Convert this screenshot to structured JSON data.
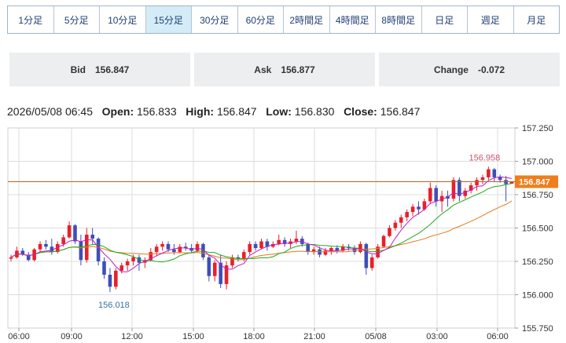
{
  "timeframe_tabs": [
    {
      "label": "1分足",
      "active": false
    },
    {
      "label": "5分足",
      "active": false
    },
    {
      "label": "10分足",
      "active": false
    },
    {
      "label": "15分足",
      "active": true
    },
    {
      "label": "30分足",
      "active": false
    },
    {
      "label": "60分足",
      "active": false
    },
    {
      "label": "2時間足",
      "active": false
    },
    {
      "label": "4時間足",
      "active": false
    },
    {
      "label": "8時間足",
      "active": false
    },
    {
      "label": "日足",
      "active": false
    },
    {
      "label": "週足",
      "active": false
    },
    {
      "label": "月足",
      "active": false
    }
  ],
  "quote": {
    "bid_label": "Bid",
    "bid": "156.847",
    "ask_label": "Ask",
    "ask": "156.877",
    "change_label": "Change",
    "change": "-0.072"
  },
  "ohlc": {
    "datetime": "2026/05/08 06:45",
    "open_label": "Open:",
    "open": "156.833",
    "high_label": "High:",
    "high": "156.847",
    "low_label": "Low:",
    "low": "156.830",
    "close_label": "Close:",
    "close": "156.847"
  },
  "colors": {
    "up": "#e8202a",
    "down": "#3d4fb8",
    "ma_short": "#c21cc2",
    "ma_mid": "#1fa81f",
    "ma_long": "#e77817",
    "price_line": "#c0631b",
    "price_tag": "#f07d1a",
    "grid": "#dddddd",
    "axis_text": "#333333",
    "high_label": "#d9506e",
    "low_label": "#3a6fa3"
  },
  "chart_data": {
    "type": "candlestick",
    "ylim": [
      155.75,
      157.25
    ],
    "y_ticks": [
      "157.250",
      "157.000",
      "156.750",
      "156.500",
      "156.250",
      "156.000",
      "155.750"
    ],
    "x_ticks": [
      "06:00",
      "09:00",
      "12:00",
      "15:00",
      "18:00",
      "21:00",
      "05/08",
      "03:00",
      "06:00"
    ],
    "current_price": "156.847",
    "high_annotation": "156.958",
    "low_annotation": "156.018",
    "grid": true,
    "candles": [
      [
        156.27,
        156.3,
        156.25,
        156.28
      ],
      [
        156.28,
        156.36,
        156.27,
        156.33
      ],
      [
        156.33,
        156.35,
        156.29,
        156.3
      ],
      [
        156.3,
        156.32,
        156.25,
        156.26
      ],
      [
        156.26,
        156.35,
        156.25,
        156.34
      ],
      [
        156.34,
        156.4,
        156.32,
        156.38
      ],
      [
        156.38,
        156.41,
        156.34,
        156.36
      ],
      [
        156.36,
        156.42,
        156.3,
        156.32
      ],
      [
        156.32,
        156.4,
        156.31,
        156.38
      ],
      [
        156.38,
        156.45,
        156.36,
        156.43
      ],
      [
        156.43,
        156.55,
        156.42,
        156.52
      ],
      [
        156.52,
        156.53,
        156.38,
        156.4
      ],
      [
        156.4,
        156.45,
        156.22,
        156.26
      ],
      [
        156.26,
        156.5,
        156.24,
        156.45
      ],
      [
        156.45,
        156.5,
        156.38,
        156.42
      ],
      [
        156.42,
        156.43,
        156.22,
        156.25
      ],
      [
        156.25,
        156.28,
        156.12,
        156.15
      ],
      [
        156.15,
        156.2,
        156.02,
        156.06
      ],
      [
        156.06,
        156.2,
        156.04,
        156.18
      ],
      [
        156.18,
        156.24,
        156.16,
        156.22
      ],
      [
        156.22,
        156.27,
        156.18,
        156.25
      ],
      [
        156.25,
        156.3,
        156.22,
        156.28
      ],
      [
        156.28,
        156.3,
        156.18,
        156.24
      ],
      [
        156.24,
        156.28,
        156.2,
        156.26
      ],
      [
        156.26,
        156.35,
        156.25,
        156.32
      ],
      [
        156.32,
        156.38,
        156.29,
        156.36
      ],
      [
        156.36,
        156.4,
        156.33,
        156.38
      ],
      [
        156.38,
        156.4,
        156.32,
        156.34
      ],
      [
        156.34,
        156.38,
        156.3,
        156.32
      ],
      [
        156.32,
        156.38,
        156.31,
        156.36
      ],
      [
        156.36,
        156.39,
        156.33,
        156.35
      ],
      [
        156.35,
        156.38,
        156.32,
        156.33
      ],
      [
        156.33,
        156.4,
        156.32,
        156.38
      ],
      [
        156.38,
        156.39,
        156.26,
        156.28
      ],
      [
        156.28,
        156.3,
        156.1,
        156.14
      ],
      [
        156.14,
        156.26,
        156.1,
        156.24
      ],
      [
        156.24,
        156.3,
        156.05,
        156.08
      ],
      [
        156.08,
        156.25,
        156.04,
        156.22
      ],
      [
        156.22,
        156.3,
        156.2,
        156.28
      ],
      [
        156.28,
        156.3,
        156.25,
        156.27
      ],
      [
        156.27,
        156.34,
        156.25,
        156.32
      ],
      [
        156.32,
        156.4,
        156.3,
        156.38
      ],
      [
        156.38,
        156.4,
        156.33,
        156.35
      ],
      [
        156.35,
        156.42,
        156.34,
        156.4
      ],
      [
        156.4,
        156.42,
        156.33,
        156.36
      ],
      [
        156.36,
        156.4,
        156.35,
        156.38
      ],
      [
        156.38,
        156.45,
        156.37,
        156.41
      ],
      [
        156.41,
        156.43,
        156.36,
        156.38
      ],
      [
        156.38,
        156.42,
        156.35,
        156.4
      ],
      [
        156.4,
        156.48,
        156.38,
        156.42
      ],
      [
        156.42,
        156.44,
        156.36,
        156.38
      ],
      [
        156.38,
        156.39,
        156.3,
        156.32
      ],
      [
        156.32,
        156.36,
        156.3,
        156.34
      ],
      [
        156.34,
        156.36,
        156.28,
        156.3
      ],
      [
        156.3,
        156.35,
        156.29,
        156.33
      ],
      [
        156.33,
        156.36,
        156.3,
        156.35
      ],
      [
        156.35,
        156.37,
        156.31,
        156.33
      ],
      [
        156.33,
        156.38,
        156.32,
        156.36
      ],
      [
        156.36,
        156.38,
        156.33,
        156.35
      ],
      [
        156.35,
        156.37,
        156.3,
        156.32
      ],
      [
        156.32,
        156.4,
        156.31,
        156.38
      ],
      [
        156.38,
        156.39,
        156.15,
        156.2
      ],
      [
        156.2,
        156.3,
        156.18,
        156.28
      ],
      [
        156.28,
        156.38,
        156.27,
        156.36
      ],
      [
        156.36,
        156.45,
        156.35,
        156.44
      ],
      [
        156.44,
        156.52,
        156.43,
        156.5
      ],
      [
        156.5,
        156.56,
        156.48,
        156.54
      ],
      [
        156.54,
        156.6,
        156.5,
        156.58
      ],
      [
        156.58,
        156.64,
        156.55,
        156.62
      ],
      [
        156.62,
        156.68,
        156.59,
        156.66
      ],
      [
        156.66,
        156.7,
        156.6,
        156.64
      ],
      [
        156.64,
        156.72,
        156.63,
        156.7
      ],
      [
        156.7,
        156.84,
        156.68,
        156.8
      ],
      [
        156.8,
        156.82,
        156.66,
        156.7
      ],
      [
        156.7,
        156.78,
        156.62,
        156.74
      ],
      [
        156.74,
        156.78,
        156.66,
        156.72
      ],
      [
        156.72,
        156.88,
        156.7,
        156.86
      ],
      [
        156.86,
        156.88,
        156.7,
        156.74
      ],
      [
        156.74,
        156.8,
        156.72,
        156.78
      ],
      [
        156.78,
        156.84,
        156.76,
        156.82
      ],
      [
        156.82,
        156.88,
        156.78,
        156.86
      ],
      [
        156.86,
        156.9,
        156.83,
        156.88
      ],
      [
        156.88,
        156.96,
        156.86,
        156.94
      ],
      [
        156.94,
        156.95,
        156.85,
        156.88
      ],
      [
        156.88,
        156.9,
        156.84,
        156.86
      ],
      [
        156.86,
        156.89,
        156.7,
        156.83
      ],
      [
        156.833,
        156.847,
        156.83,
        156.847
      ]
    ]
  }
}
